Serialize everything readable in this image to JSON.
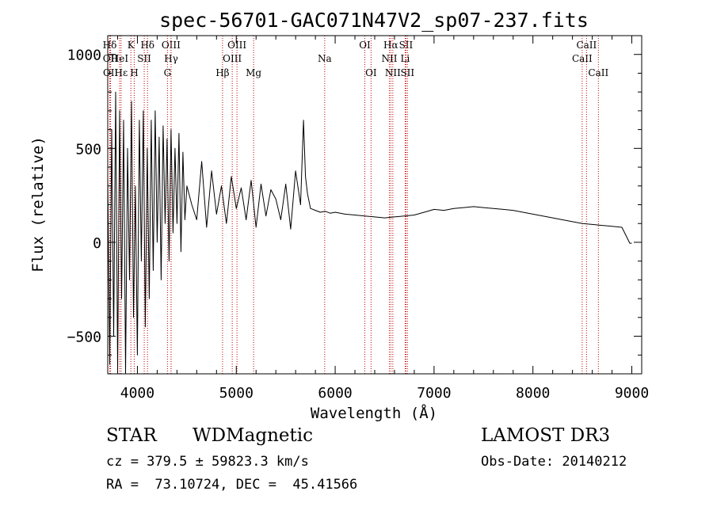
{
  "chart_data": {
    "type": "line",
    "title": "spec-56701-GAC071N47V2_sp07-237.fits",
    "xlabel": "Wavelength (Å)",
    "ylabel": "Flux (relative)",
    "xlim": [
      3700,
      9100
    ],
    "ylim": [
      -700,
      1100
    ],
    "xticks": [
      4000,
      5000,
      6000,
      7000,
      8000,
      9000
    ],
    "yticks": [
      -500,
      0,
      500,
      1000
    ],
    "xtick_labels": [
      "4000",
      "5000",
      "6000",
      "7000",
      "8000",
      "9000"
    ],
    "ytick_labels": [
      "−500",
      "0",
      "500",
      "1000"
    ],
    "spectrum": {
      "name": "flux",
      "x": [
        3700,
        3720,
        3740,
        3760,
        3780,
        3800,
        3820,
        3840,
        3860,
        3880,
        3900,
        3920,
        3940,
        3960,
        3980,
        4000,
        4020,
        4040,
        4060,
        4080,
        4100,
        4120,
        4140,
        4160,
        4180,
        4200,
        4220,
        4240,
        4260,
        4280,
        4300,
        4320,
        4340,
        4360,
        4380,
        4400,
        4420,
        4440,
        4460,
        4480,
        4500,
        4550,
        4600,
        4650,
        4700,
        4750,
        4800,
        4850,
        4900,
        4950,
        5000,
        5050,
        5100,
        5150,
        5200,
        5250,
        5300,
        5350,
        5400,
        5450,
        5500,
        5550,
        5600,
        5650,
        5680,
        5700,
        5720,
        5750,
        5800,
        5850,
        5900,
        5950,
        6000,
        6100,
        6200,
        6300,
        6400,
        6500,
        6600,
        6700,
        6800,
        6900,
        7000,
        7100,
        7200,
        7300,
        7400,
        7500,
        7600,
        7700,
        7800,
        7900,
        8000,
        8100,
        8200,
        8300,
        8400,
        8500,
        8600,
        8700,
        8800,
        8900,
        8980,
        9000
      ],
      "y": [
        350,
        -650,
        600,
        -500,
        800,
        -680,
        700,
        -300,
        650,
        -700,
        500,
        -200,
        750,
        -400,
        300,
        -600,
        650,
        -100,
        700,
        -450,
        500,
        -300,
        650,
        -150,
        700,
        0,
        560,
        -200,
        620,
        100,
        550,
        -100,
        600,
        50,
        500,
        100,
        580,
        -50,
        480,
        120,
        300,
        200,
        120,
        430,
        80,
        380,
        150,
        300,
        100,
        350,
        180,
        290,
        120,
        330,
        80,
        310,
        140,
        280,
        230,
        120,
        310,
        70,
        380,
        200,
        650,
        350,
        260,
        180,
        170,
        160,
        165,
        155,
        160,
        150,
        145,
        140,
        135,
        130,
        135,
        140,
        145,
        160,
        175,
        170,
        180,
        185,
        190,
        185,
        180,
        175,
        170,
        160,
        150,
        140,
        130,
        120,
        110,
        100,
        95,
        90,
        85,
        80,
        -5,
        -5
      ]
    },
    "lines": [
      {
        "label": "Hδ",
        "x": 3720,
        "row": 0
      },
      {
        "label": "OII",
        "x": 3727,
        "row": 1
      },
      {
        "label": "OII",
        "x": 3729,
        "row": 2
      },
      {
        "label": "HeI",
        "x": 3820,
        "row": 1
      },
      {
        "label": "Hε",
        "x": 3835,
        "row": 2
      },
      {
        "label": "K",
        "x": 3934,
        "row": 0
      },
      {
        "label": "H",
        "x": 3968,
        "row": 2
      },
      {
        "label": "SII",
        "x": 4069,
        "row": 1
      },
      {
        "label": "Hδ",
        "x": 4102,
        "row": 0
      },
      {
        "label": "OIII",
        "x": 4340,
        "row": 0
      },
      {
        "label": "Hγ",
        "x": 4341,
        "row": 1
      },
      {
        "label": "G",
        "x": 4304,
        "row": 2
      },
      {
        "label": "Hβ",
        "x": 4861,
        "row": 2
      },
      {
        "label": "OIII",
        "x": 4959,
        "row": 1
      },
      {
        "label": "OIII",
        "x": 5007,
        "row": 0
      },
      {
        "label": "Mg",
        "x": 5175,
        "row": 2
      },
      {
        "label": "Na",
        "x": 5894,
        "row": 1
      },
      {
        "label": "OI",
        "x": 6300,
        "row": 0
      },
      {
        "label": "OI",
        "x": 6363,
        "row": 2
      },
      {
        "label": "NII",
        "x": 6548,
        "row": 1
      },
      {
        "label": "Hα",
        "x": 6563,
        "row": 0
      },
      {
        "label": "NII",
        "x": 6583,
        "row": 2
      },
      {
        "label": "SII",
        "x": 6716,
        "row": 0
      },
      {
        "label": "Li",
        "x": 6708,
        "row": 1
      },
      {
        "label": "SII",
        "x": 6731,
        "row": 2
      },
      {
        "label": "CaII",
        "x": 8498,
        "row": 1
      },
      {
        "label": "CaII",
        "x": 8542,
        "row": 0
      },
      {
        "label": "CaII",
        "x": 8662,
        "row": 2
      }
    ]
  },
  "footer": {
    "object_class": "STAR",
    "subclass": "WDMagnetic",
    "survey": "LAMOST DR3",
    "cz": "cz = 379.5 ± 59823.3 km/s",
    "obs_date": "Obs-Date: 20140212",
    "radec": "RA =  73.10724, DEC =  45.41566"
  }
}
